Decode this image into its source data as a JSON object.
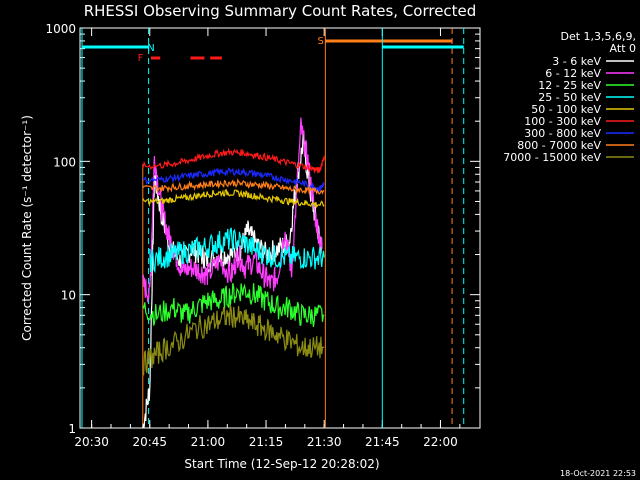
{
  "chart_data": {
    "type": "line",
    "title": "RHESSI Observing Summary Count Rates, Corrected",
    "xlabel": "Start Time (12-Sep-12 20:28:02)",
    "ylabel": "Corrected Count Rate (s⁻¹ detector⁻¹)",
    "ylog": true,
    "ylim": [
      1,
      1000
    ],
    "xlim_minutes": [
      20.45,
      22.17
    ],
    "x_ticks": [
      {
        "label": "20:30",
        "t": 20.5
      },
      {
        "label": "20:45",
        "t": 20.75
      },
      {
        "label": "21:00",
        "t": 21.0
      },
      {
        "label": "21:15",
        "t": 21.25
      },
      {
        "label": "21:30",
        "t": 21.5
      },
      {
        "label": "21:45",
        "t": 21.75
      },
      {
        "label": "22:00",
        "t": 22.0
      }
    ],
    "y_ticks": [
      {
        "label": "1",
        "v": 1
      },
      {
        "label": "10",
        "v": 10
      },
      {
        "label": "100",
        "v": 100
      },
      {
        "label": "1000",
        "v": 1000
      }
    ],
    "legend_header": [
      "Det 1,3,5,6,9,",
      "Att 0"
    ],
    "legend_position": "right",
    "series": [
      {
        "name": "3 - 6 keV",
        "color": "#ffffff",
        "points": [
          [
            20.72,
            1
          ],
          [
            20.75,
            2
          ],
          [
            20.77,
            80
          ],
          [
            20.8,
            40
          ],
          [
            20.84,
            22
          ],
          [
            20.88,
            18
          ],
          [
            20.93,
            22
          ],
          [
            20.97,
            20
          ],
          [
            21.0,
            18
          ],
          [
            21.05,
            20
          ],
          [
            21.1,
            20
          ],
          [
            21.14,
            22
          ],
          [
            21.17,
            30
          ],
          [
            21.2,
            25
          ],
          [
            21.25,
            20
          ],
          [
            21.3,
            22
          ],
          [
            21.35,
            25
          ],
          [
            21.38,
            70
          ],
          [
            21.41,
            140
          ],
          [
            21.44,
            60
          ],
          [
            21.47,
            32
          ],
          [
            21.49,
            22
          ]
        ]
      },
      {
        "name": "6 - 12 keV",
        "color": "#ff3cff",
        "points": [
          [
            20.72,
            12
          ],
          [
            20.75,
            10
          ],
          [
            20.77,
            110
          ],
          [
            20.8,
            45
          ],
          [
            20.83,
            28
          ],
          [
            20.86,
            20
          ],
          [
            20.89,
            15
          ],
          [
            20.93,
            16
          ],
          [
            20.97,
            15
          ],
          [
            21.0,
            14
          ],
          [
            21.05,
            18
          ],
          [
            21.1,
            14
          ],
          [
            21.13,
            20
          ],
          [
            21.16,
            16
          ],
          [
            21.2,
            18
          ],
          [
            21.24,
            14
          ],
          [
            21.27,
            12
          ],
          [
            21.3,
            14
          ],
          [
            21.33,
            30
          ],
          [
            21.36,
            15
          ],
          [
            21.4,
            180
          ],
          [
            21.43,
            100
          ],
          [
            21.46,
            40
          ],
          [
            21.49,
            22
          ]
        ]
      },
      {
        "name": "12 - 25 keV",
        "color": "#2cff2c",
        "points": [
          [
            20.72,
            8
          ],
          [
            20.78,
            7
          ],
          [
            20.85,
            8
          ],
          [
            20.9,
            7
          ],
          [
            20.95,
            8
          ],
          [
            21.0,
            9
          ],
          [
            21.05,
            9
          ],
          [
            21.1,
            10
          ],
          [
            21.15,
            11
          ],
          [
            21.2,
            10
          ],
          [
            21.25,
            9
          ],
          [
            21.3,
            8
          ],
          [
            21.35,
            8
          ],
          [
            21.4,
            7
          ],
          [
            21.45,
            7
          ],
          [
            21.5,
            7
          ]
        ]
      },
      {
        "name": "25 - 50 keV",
        "color": "#00ffff",
        "points": [
          [
            20.75,
            18
          ],
          [
            20.8,
            19
          ],
          [
            20.85,
            20
          ],
          [
            20.9,
            21
          ],
          [
            20.95,
            22
          ],
          [
            21.0,
            23
          ],
          [
            21.05,
            25
          ],
          [
            21.1,
            26
          ],
          [
            21.15,
            25
          ],
          [
            21.2,
            22
          ],
          [
            21.25,
            20
          ],
          [
            21.3,
            19
          ],
          [
            21.35,
            19
          ],
          [
            21.4,
            19
          ],
          [
            21.45,
            19
          ],
          [
            21.5,
            19
          ]
        ]
      },
      {
        "name": "50 - 100 keV",
        "color": "#e6c800",
        "points": [
          [
            20.72,
            50
          ],
          [
            20.8,
            50
          ],
          [
            20.85,
            52
          ],
          [
            20.9,
            53
          ],
          [
            20.95,
            55
          ],
          [
            21.0,
            57
          ],
          [
            21.05,
            58
          ],
          [
            21.1,
            58
          ],
          [
            21.15,
            57
          ],
          [
            21.2,
            55
          ],
          [
            21.25,
            53
          ],
          [
            21.3,
            52
          ],
          [
            21.35,
            50
          ],
          [
            21.4,
            49
          ],
          [
            21.45,
            48
          ],
          [
            21.5,
            47
          ]
        ]
      },
      {
        "name": "100 - 300 keV",
        "color": "#ff1a1a",
        "points": [
          [
            20.72,
            92
          ],
          [
            20.8,
            93
          ],
          [
            20.85,
            96
          ],
          [
            20.9,
            100
          ],
          [
            20.95,
            105
          ],
          [
            21.0,
            110
          ],
          [
            21.05,
            115
          ],
          [
            21.1,
            117
          ],
          [
            21.15,
            116
          ],
          [
            21.2,
            112
          ],
          [
            21.25,
            107
          ],
          [
            21.3,
            102
          ],
          [
            21.35,
            97
          ],
          [
            21.4,
            93
          ],
          [
            21.45,
            88
          ],
          [
            21.48,
            85
          ],
          [
            21.5,
            110
          ]
        ]
      },
      {
        "name": "300 - 800 keV",
        "color": "#1a2aff",
        "points": [
          [
            20.72,
            72
          ],
          [
            20.8,
            73
          ],
          [
            20.85,
            75
          ],
          [
            20.9,
            77
          ],
          [
            20.95,
            79
          ],
          [
            21.0,
            81
          ],
          [
            21.05,
            83
          ],
          [
            21.1,
            84
          ],
          [
            21.15,
            83
          ],
          [
            21.2,
            81
          ],
          [
            21.25,
            78
          ],
          [
            21.3,
            75
          ],
          [
            21.35,
            72
          ],
          [
            21.4,
            69
          ],
          [
            21.45,
            65
          ],
          [
            21.48,
            62
          ],
          [
            21.5,
            68
          ]
        ]
      },
      {
        "name": "800 - 7000 keV",
        "color": "#ff7f1a",
        "points": [
          [
            20.72,
            63
          ],
          [
            20.8,
            63
          ],
          [
            20.85,
            64
          ],
          [
            20.9,
            65
          ],
          [
            20.95,
            66
          ],
          [
            21.0,
            67
          ],
          [
            21.05,
            68
          ],
          [
            21.1,
            69
          ],
          [
            21.15,
            68
          ],
          [
            21.2,
            67
          ],
          [
            21.25,
            66
          ],
          [
            21.3,
            64
          ],
          [
            21.35,
            62
          ],
          [
            21.4,
            61
          ],
          [
            21.45,
            60
          ],
          [
            21.5,
            60
          ]
        ]
      },
      {
        "name": "7000 - 15000 keV",
        "color": "#8c8c14",
        "points": [
          [
            20.72,
            3
          ],
          [
            20.77,
            3.5
          ],
          [
            20.82,
            4
          ],
          [
            20.88,
            4.5
          ],
          [
            20.94,
            5.5
          ],
          [
            21.0,
            6
          ],
          [
            21.05,
            6.5
          ],
          [
            21.1,
            7
          ],
          [
            21.15,
            6.5
          ],
          [
            21.2,
            6
          ],
          [
            21.25,
            5.5
          ],
          [
            21.3,
            5
          ],
          [
            21.35,
            4.5
          ],
          [
            21.4,
            4
          ],
          [
            21.45,
            4
          ],
          [
            21.5,
            4
          ]
        ]
      }
    ],
    "flag_labels": [
      {
        "label": "F",
        "color": "#ff1a1a"
      },
      {
        "label": "N",
        "color": "#00ffff"
      },
      {
        "label": "S",
        "color": "#ff7f1a"
      }
    ],
    "timestamp": "18-Oct-2021 22:53"
  }
}
